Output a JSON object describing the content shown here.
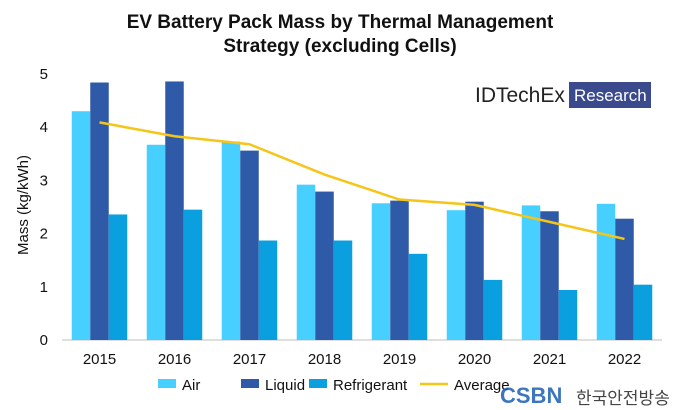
{
  "chart_data": {
    "type": "bar",
    "title_lines": [
      "EV Battery Pack Mass by Thermal Management",
      "Strategy (excluding Cells)"
    ],
    "xlabel": "",
    "ylabel": "Mass (kg/kWh)",
    "ylim": [
      0,
      5
    ],
    "yticks": [
      "0",
      "1",
      "2",
      "3",
      "4",
      "5"
    ],
    "grid": false,
    "legend_position": "bottom",
    "categories": [
      "2015",
      "2016",
      "2017",
      "2018",
      "2019",
      "2020",
      "2021",
      "2022"
    ],
    "series": [
      {
        "name": "Air",
        "kind": "bar",
        "color": "#47cfff",
        "values": [
          4.3,
          3.67,
          3.73,
          2.92,
          2.57,
          2.44,
          2.53,
          2.56
        ]
      },
      {
        "name": "Liquid",
        "kind": "bar",
        "color": "#2f5aa8",
        "values": [
          4.84,
          4.86,
          3.56,
          2.79,
          2.62,
          2.6,
          2.42,
          2.28
        ]
      },
      {
        "name": "Refrigerant",
        "kind": "bar",
        "color": "#0aa0e0",
        "values": [
          2.36,
          2.45,
          1.87,
          1.87,
          1.62,
          1.13,
          0.94,
          1.04
        ]
      },
      {
        "name": "Average",
        "kind": "line",
        "color": "#f5c518",
        "values": [
          4.09,
          3.83,
          3.68,
          3.11,
          2.64,
          2.54,
          2.22,
          1.9
        ]
      }
    ]
  },
  "logo": {
    "main": "IDTechEx",
    "sub": "Research",
    "sub_bg": "#3b4a8c"
  },
  "watermark": {
    "text": "한국안전방송",
    "mark": "CSBN"
  }
}
